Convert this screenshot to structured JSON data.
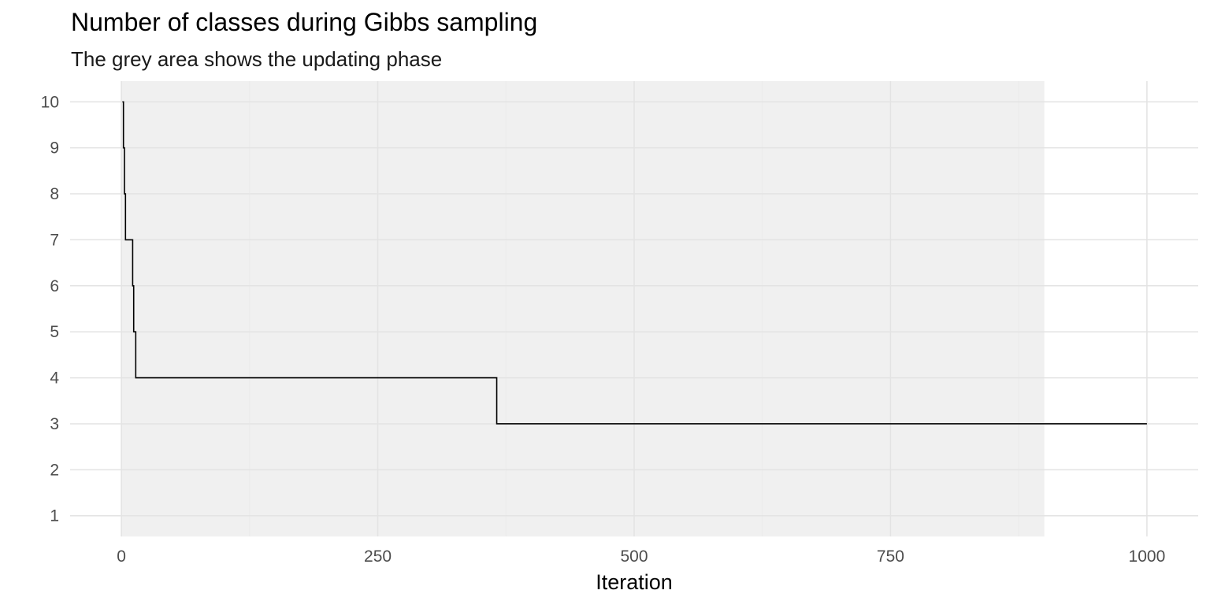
{
  "chart_data": {
    "type": "line",
    "title": "Number of classes during Gibbs sampling",
    "subtitle": "The grey area shows the updating phase",
    "xlabel": "Iteration",
    "ylabel": "",
    "xlim": [
      -50,
      1050
    ],
    "ylim": [
      0.55,
      10.45
    ],
    "x_ticks": [
      0,
      250,
      500,
      750,
      1000
    ],
    "x_tick_labels": [
      "0",
      "250",
      "500",
      "750",
      "1000"
    ],
    "y_ticks": [
      1,
      2,
      3,
      4,
      5,
      6,
      7,
      8,
      9,
      10
    ],
    "y_tick_labels": [
      "1",
      "2",
      "3",
      "4",
      "5",
      "6",
      "7",
      "8",
      "9",
      "10"
    ],
    "grid": true,
    "shaded_region": {
      "x_start": 0,
      "x_end": 900,
      "color": "#f0f0f0"
    },
    "series": [
      {
        "x": [
          1,
          2,
          3,
          4,
          6,
          11,
          12,
          14,
          365,
          366,
          1000
        ],
        "y": [
          10,
          9,
          8,
          7,
          7,
          6,
          5,
          4,
          4,
          3,
          3
        ],
        "style": "step",
        "color": "#000000"
      }
    ]
  }
}
